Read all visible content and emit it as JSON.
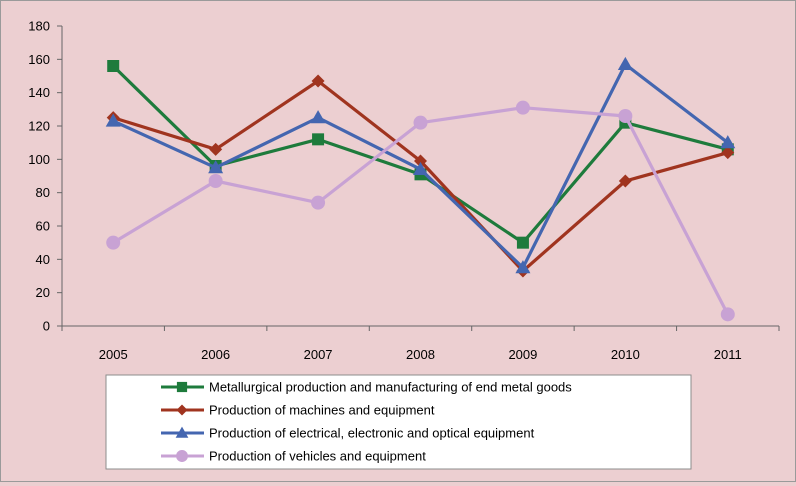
{
  "chart_data": {
    "type": "line",
    "title": "",
    "xlabel": "",
    "ylabel": "",
    "categories": [
      "2005",
      "2006",
      "2007",
      "2008",
      "2009",
      "2010",
      "2011"
    ],
    "ylim": [
      0,
      180
    ],
    "yticks": [
      0,
      20,
      40,
      60,
      80,
      100,
      120,
      140,
      160,
      180
    ],
    "grid": false,
    "legend_position": "bottom",
    "series": [
      {
        "name": "Metallurgical production and  manufacturing of end metal  goods",
        "values": [
          156,
          96,
          112,
          91,
          50,
          122,
          106
        ],
        "color": "#1e7b3c",
        "marker": "square"
      },
      {
        "name": "Production of machines and equipment",
        "values": [
          125,
          106,
          147,
          99,
          33,
          87,
          104
        ],
        "color": "#a0341f",
        "marker": "diamond"
      },
      {
        "name": "Production of electrical, electronic and optical equipment",
        "values": [
          123,
          95,
          125,
          94,
          35,
          157,
          110
        ],
        "color": "#4466b0",
        "marker": "triangle"
      },
      {
        "name": "Production of vehicles and equipment",
        "values": [
          50,
          87,
          74,
          122,
          131,
          126,
          7
        ],
        "color": "#c8a2d4",
        "marker": "circle"
      }
    ]
  }
}
